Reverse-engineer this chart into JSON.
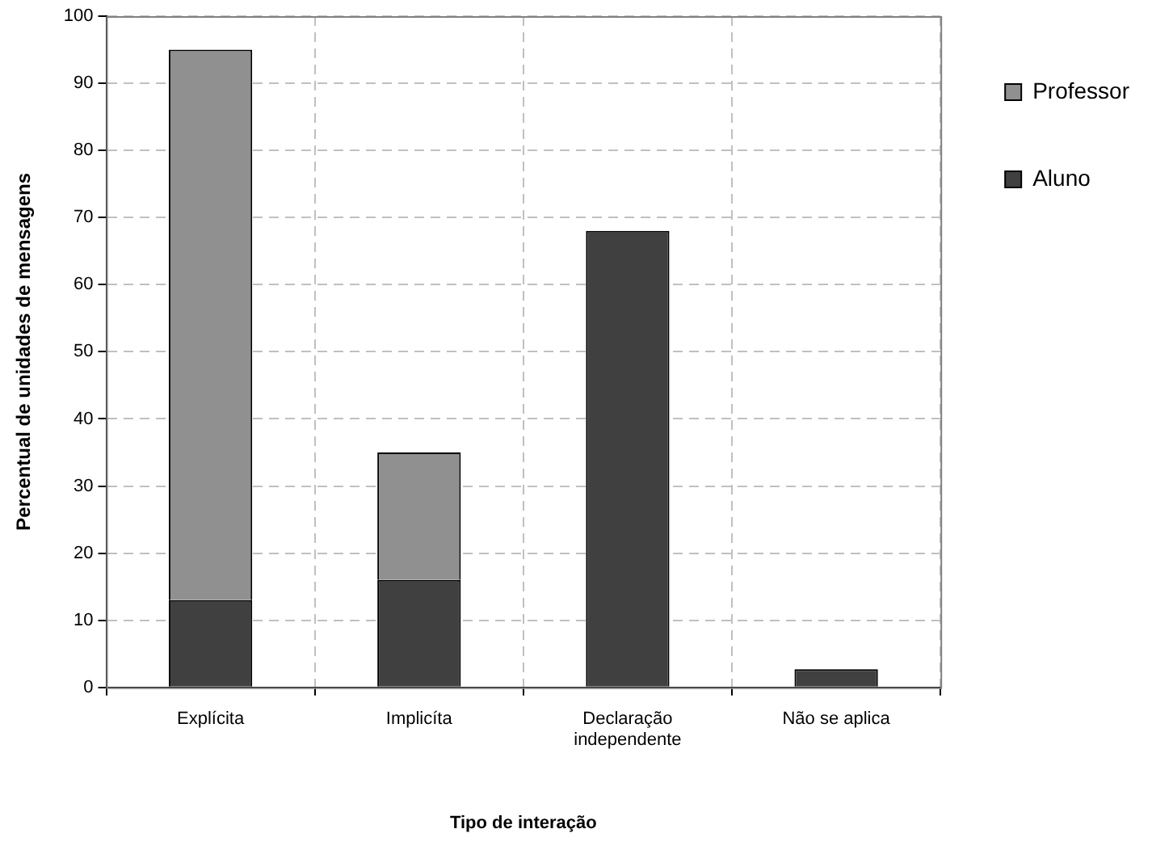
{
  "chart_data": {
    "type": "bar",
    "stacked": true,
    "xlabel": "Tipo de interação",
    "ylabel": "Percentual de unidades de mensagens",
    "categories": [
      "Explícita",
      "Implicíta",
      "Declaração independente",
      "Não se aplica"
    ],
    "series": [
      {
        "name": "Aluno",
        "color": "#404040",
        "values": [
          13,
          16,
          68,
          2.7
        ]
      },
      {
        "name": "Professor",
        "color": "#909090",
        "values": [
          82,
          19,
          0,
          0
        ]
      }
    ],
    "ylim": [
      0,
      100
    ],
    "yticks": [
      0,
      10,
      20,
      30,
      40,
      50,
      60,
      70,
      80,
      90,
      100
    ],
    "grid": true,
    "legend": "top right"
  }
}
